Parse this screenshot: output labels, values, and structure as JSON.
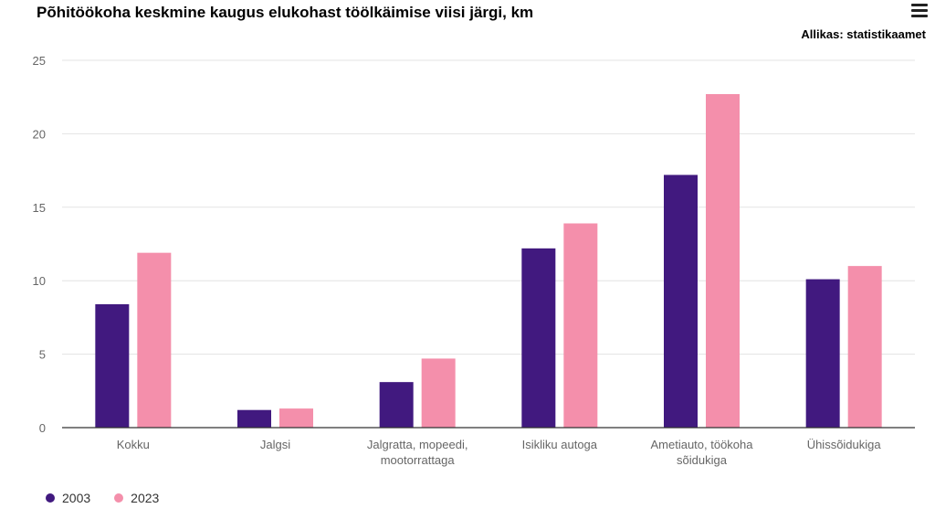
{
  "title": "Põhitöökoha keskmine kaugus elukohast töölkäimise viisi järgi, km",
  "source": "Allikas: statistikaamet",
  "menu_icon": "hamburger-menu-icon",
  "colors": {
    "s2003": "#41197f",
    "s2023": "#f48fab",
    "grid": "#e3e3e3",
    "axis": "#333333",
    "tick": "#666666"
  },
  "chart_data": {
    "type": "bar",
    "title": "Põhitöökoha keskmine kaugus elukohast töölkäimise viisi järgi, km",
    "xlabel": "",
    "ylabel": "",
    "ylim": [
      0,
      25
    ],
    "yticks": [
      0,
      5,
      10,
      15,
      20,
      25
    ],
    "grid": true,
    "legend": "bottom-left",
    "categories": [
      [
        "Kokku"
      ],
      [
        "Jalgsi"
      ],
      [
        "Jalgratta, mopeedi,",
        "mootorrattaga"
      ],
      [
        "Isikliku autoga"
      ],
      [
        "Ametiauto, töökoha",
        "sõidukiga"
      ],
      [
        "Ühissõidukiga"
      ]
    ],
    "series": [
      {
        "name": "2003",
        "values": [
          8.4,
          1.2,
          3.1,
          12.2,
          17.2,
          10.1
        ]
      },
      {
        "name": "2023",
        "values": [
          11.9,
          1.3,
          4.7,
          13.9,
          22.7,
          11.0
        ]
      }
    ]
  }
}
